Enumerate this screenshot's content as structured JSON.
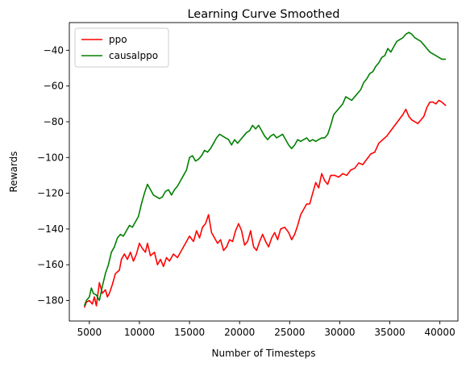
{
  "chart_data": {
    "type": "line",
    "title": "Learning Curve Smoothed",
    "xlabel": "Number of Timesteps",
    "ylabel": "Rewards",
    "xlim": [
      3000,
      41800
    ],
    "ylim": [
      -191.5,
      -24.5
    ],
    "xticks": [
      5000,
      10000,
      15000,
      20000,
      25000,
      30000,
      35000,
      40000
    ],
    "yticks": [
      -180,
      -160,
      -140,
      -120,
      -100,
      -80,
      -60,
      -40
    ],
    "grid": false,
    "legend_position": "top-left",
    "series": [
      {
        "name": "ppo",
        "color": "#ff0000",
        "points": [
          [
            4500,
            -184
          ],
          [
            4700,
            -181
          ],
          [
            5000,
            -180
          ],
          [
            5300,
            -182
          ],
          [
            5500,
            -178
          ],
          [
            5700,
            -183
          ],
          [
            6000,
            -170
          ],
          [
            6300,
            -176
          ],
          [
            6600,
            -174
          ],
          [
            6800,
            -178
          ],
          [
            7000,
            -176
          ],
          [
            7300,
            -171
          ],
          [
            7600,
            -165
          ],
          [
            8000,
            -163
          ],
          [
            8200,
            -157
          ],
          [
            8500,
            -154
          ],
          [
            8800,
            -157
          ],
          [
            9100,
            -153
          ],
          [
            9400,
            -158
          ],
          [
            9700,
            -154
          ],
          [
            10000,
            -148
          ],
          [
            10300,
            -151
          ],
          [
            10600,
            -153
          ],
          [
            10800,
            -148
          ],
          [
            11100,
            -155
          ],
          [
            11500,
            -153
          ],
          [
            11800,
            -160
          ],
          [
            12100,
            -157
          ],
          [
            12400,
            -161
          ],
          [
            12700,
            -156
          ],
          [
            13000,
            -158
          ],
          [
            13400,
            -154
          ],
          [
            13800,
            -156
          ],
          [
            14200,
            -152
          ],
          [
            14600,
            -148
          ],
          [
            15000,
            -144
          ],
          [
            15400,
            -147
          ],
          [
            15700,
            -141
          ],
          [
            16000,
            -145
          ],
          [
            16300,
            -139
          ],
          [
            16600,
            -137
          ],
          [
            16900,
            -132
          ],
          [
            17200,
            -142
          ],
          [
            17500,
            -145
          ],
          [
            17800,
            -148
          ],
          [
            18100,
            -146
          ],
          [
            18400,
            -152
          ],
          [
            18700,
            -150
          ],
          [
            19000,
            -146
          ],
          [
            19300,
            -147
          ],
          [
            19600,
            -141
          ],
          [
            19900,
            -137
          ],
          [
            20200,
            -141
          ],
          [
            20500,
            -149
          ],
          [
            20800,
            -147
          ],
          [
            21100,
            -141
          ],
          [
            21400,
            -150
          ],
          [
            21700,
            -152
          ],
          [
            22000,
            -147
          ],
          [
            22300,
            -143
          ],
          [
            22600,
            -147
          ],
          [
            22900,
            -150
          ],
          [
            23200,
            -145
          ],
          [
            23500,
            -142
          ],
          [
            23800,
            -146
          ],
          [
            24100,
            -140
          ],
          [
            24500,
            -139
          ],
          [
            24900,
            -142
          ],
          [
            25200,
            -146
          ],
          [
            25500,
            -143
          ],
          [
            25800,
            -138
          ],
          [
            26100,
            -132
          ],
          [
            26400,
            -129
          ],
          [
            26700,
            -126
          ],
          [
            27000,
            -126
          ],
          [
            27300,
            -120
          ],
          [
            27600,
            -114
          ],
          [
            27900,
            -117
          ],
          [
            28200,
            -109
          ],
          [
            28500,
            -113
          ],
          [
            28800,
            -115
          ],
          [
            29100,
            -110
          ],
          [
            29500,
            -110
          ],
          [
            29900,
            -111
          ],
          [
            30300,
            -109
          ],
          [
            30700,
            -110
          ],
          [
            31100,
            -107
          ],
          [
            31500,
            -106
          ],
          [
            31900,
            -103
          ],
          [
            32300,
            -104
          ],
          [
            32700,
            -101
          ],
          [
            33100,
            -98
          ],
          [
            33500,
            -97
          ],
          [
            33900,
            -92
          ],
          [
            34300,
            -90
          ],
          [
            34700,
            -88
          ],
          [
            35100,
            -85
          ],
          [
            35500,
            -82
          ],
          [
            35900,
            -79
          ],
          [
            36300,
            -76
          ],
          [
            36600,
            -73
          ],
          [
            36900,
            -77
          ],
          [
            37200,
            -79
          ],
          [
            37500,
            -80
          ],
          [
            37800,
            -81
          ],
          [
            38100,
            -79
          ],
          [
            38400,
            -77
          ],
          [
            38700,
            -72
          ],
          [
            39000,
            -69
          ],
          [
            39300,
            -69
          ],
          [
            39600,
            -70
          ],
          [
            39900,
            -68
          ],
          [
            40200,
            -69
          ],
          [
            40600,
            -71
          ]
        ]
      },
      {
        "name": "causalppo",
        "color": "#008000",
        "points": [
          [
            4500,
            -183
          ],
          [
            4700,
            -180
          ],
          [
            5000,
            -178
          ],
          [
            5200,
            -173
          ],
          [
            5400,
            -176
          ],
          [
            5700,
            -177
          ],
          [
            6000,
            -180
          ],
          [
            6300,
            -172
          ],
          [
            6600,
            -165
          ],
          [
            6900,
            -160
          ],
          [
            7200,
            -153
          ],
          [
            7500,
            -150
          ],
          [
            7800,
            -145
          ],
          [
            8100,
            -143
          ],
          [
            8400,
            -144
          ],
          [
            8700,
            -141
          ],
          [
            9000,
            -138
          ],
          [
            9300,
            -139
          ],
          [
            9600,
            -136
          ],
          [
            9900,
            -133
          ],
          [
            10200,
            -126
          ],
          [
            10500,
            -120
          ],
          [
            10800,
            -115
          ],
          [
            11100,
            -118
          ],
          [
            11400,
            -121
          ],
          [
            11700,
            -122
          ],
          [
            12000,
            -123
          ],
          [
            12300,
            -122
          ],
          [
            12600,
            -119
          ],
          [
            12900,
            -118
          ],
          [
            13200,
            -121
          ],
          [
            13500,
            -118
          ],
          [
            13800,
            -116
          ],
          [
            14100,
            -113
          ],
          [
            14400,
            -110
          ],
          [
            14700,
            -107
          ],
          [
            15000,
            -100
          ],
          [
            15300,
            -99
          ],
          [
            15600,
            -102
          ],
          [
            15900,
            -101
          ],
          [
            16200,
            -99
          ],
          [
            16500,
            -96
          ],
          [
            16800,
            -97
          ],
          [
            17100,
            -95
          ],
          [
            17400,
            -92
          ],
          [
            17700,
            -89
          ],
          [
            18000,
            -87
          ],
          [
            18300,
            -88
          ],
          [
            18600,
            -89
          ],
          [
            18900,
            -90
          ],
          [
            19200,
            -93
          ],
          [
            19500,
            -90
          ],
          [
            19800,
            -92
          ],
          [
            20100,
            -90
          ],
          [
            20400,
            -88
          ],
          [
            20700,
            -86
          ],
          [
            21000,
            -85
          ],
          [
            21300,
            -82
          ],
          [
            21600,
            -84
          ],
          [
            21900,
            -82
          ],
          [
            22200,
            -85
          ],
          [
            22500,
            -88
          ],
          [
            22800,
            -90
          ],
          [
            23100,
            -88
          ],
          [
            23400,
            -87
          ],
          [
            23700,
            -89
          ],
          [
            24000,
            -88
          ],
          [
            24300,
            -87
          ],
          [
            24600,
            -90
          ],
          [
            24900,
            -93
          ],
          [
            25200,
            -95
          ],
          [
            25500,
            -93
          ],
          [
            25800,
            -90
          ],
          [
            26100,
            -91
          ],
          [
            26400,
            -90
          ],
          [
            26700,
            -89
          ],
          [
            27000,
            -91
          ],
          [
            27300,
            -90
          ],
          [
            27600,
            -91
          ],
          [
            27900,
            -90
          ],
          [
            28200,
            -89
          ],
          [
            28500,
            -89
          ],
          [
            28800,
            -87
          ],
          [
            29100,
            -82
          ],
          [
            29400,
            -76
          ],
          [
            29700,
            -74
          ],
          [
            30000,
            -72
          ],
          [
            30300,
            -70
          ],
          [
            30600,
            -66
          ],
          [
            30900,
            -67
          ],
          [
            31200,
            -68
          ],
          [
            31500,
            -66
          ],
          [
            31800,
            -64
          ],
          [
            32100,
            -62
          ],
          [
            32400,
            -58
          ],
          [
            32700,
            -56
          ],
          [
            33000,
            -53
          ],
          [
            33300,
            -52
          ],
          [
            33600,
            -49
          ],
          [
            33900,
            -47
          ],
          [
            34200,
            -44
          ],
          [
            34500,
            -43
          ],
          [
            34800,
            -39
          ],
          [
            35100,
            -41
          ],
          [
            35400,
            -38
          ],
          [
            35700,
            -35
          ],
          [
            36000,
            -34
          ],
          [
            36300,
            -33
          ],
          [
            36600,
            -31
          ],
          [
            36900,
            -30
          ],
          [
            37200,
            -31
          ],
          [
            37500,
            -33
          ],
          [
            37800,
            -34
          ],
          [
            38100,
            -35
          ],
          [
            38400,
            -37
          ],
          [
            38700,
            -39
          ],
          [
            39000,
            -41
          ],
          [
            39300,
            -42
          ],
          [
            39600,
            -43
          ],
          [
            39900,
            -44
          ],
          [
            40200,
            -45
          ],
          [
            40600,
            -45
          ]
        ]
      }
    ]
  }
}
